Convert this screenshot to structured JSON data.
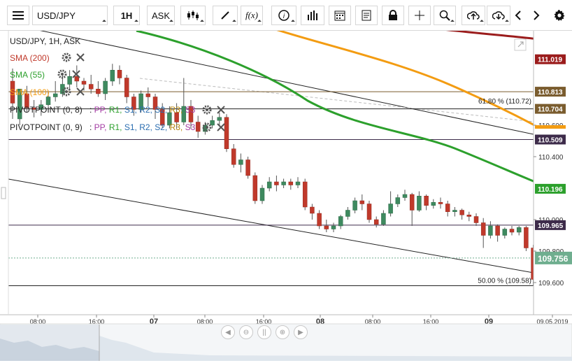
{
  "toolbar": {
    "symbol": "USD/JPY",
    "timeframe": "1H",
    "price_type": "ASK",
    "icons": [
      "menu-icon",
      "candles-icon",
      "draw-icon",
      "fx-icon",
      "info-icon",
      "volume-icon",
      "calendar-icon",
      "note-icon",
      "lock-icon",
      "crosshair-icon",
      "zoom-icon",
      "upload-icon",
      "download-icon",
      "prev-icon",
      "next-icon",
      "gear-icon"
    ],
    "fx_label": "f(x)"
  },
  "chart": {
    "header": "USD/JPY, 1H, ASK",
    "legend": [
      {
        "name": "SMA (200)",
        "color": "#c0392b"
      },
      {
        "name": "SMA (55)",
        "color": "#2ca02c"
      },
      {
        "name": "SMA (100)",
        "color": "#f39c12"
      }
    ],
    "pivots": [
      {
        "label": "PIVOTPOINT (0, 8)",
        "items": [
          "PP",
          "R1",
          "S1",
          "R2",
          "S2",
          "R3",
          "S3"
        ]
      },
      {
        "label": "PIVOTPOINT (0, 9)",
        "items": [
          "PP",
          "R1",
          "S1",
          "R2",
          "S2",
          "R3",
          "S3"
        ]
      }
    ],
    "pivot_colors": [
      "#a33ca3",
      "#2ca02c",
      "#2a6db0",
      "#2a6db0",
      "#2a6db0",
      "#b8860b",
      "#a33ca3"
    ],
    "price_tags": [
      {
        "value": "111.019",
        "price": 111.019,
        "bg": "#9b1c1c"
      },
      {
        "value": "110.813",
        "price": 110.813,
        "bg": "#7a5c2e"
      },
      {
        "value": "110.704",
        "price": 110.704,
        "bg": "#7a5c2e"
      },
      {
        "value": "110.509",
        "price": 110.509,
        "bg": "#3d2b4a"
      },
      {
        "value": "110.196",
        "price": 110.196,
        "bg": "#2ca02c"
      },
      {
        "value": "109.965",
        "price": 109.965,
        "bg": "#3d2b4a"
      },
      {
        "value": "109.756",
        "price": 109.756,
        "bg": "#6fae8f"
      }
    ],
    "axis_ticks": [
      "110.600",
      "110.400",
      "110.000",
      "109.800",
      "109.600"
    ],
    "axis_tick_values": [
      110.6,
      110.4,
      110.0,
      109.8,
      109.6
    ],
    "fib_labels": [
      {
        "text": "61.80 % (110.72)",
        "price": 110.72
      },
      {
        "text": "50.00 % (109.58)",
        "price": 109.58
      }
    ],
    "time_labels": [
      {
        "text": "08:00",
        "bold": false
      },
      {
        "text": "16:00",
        "bold": false
      },
      {
        "text": "07",
        "bold": true
      },
      {
        "text": "08:00",
        "bold": false
      },
      {
        "text": "16:00",
        "bold": false
      },
      {
        "text": "08",
        "bold": true
      },
      {
        "text": "08:00",
        "bold": false
      },
      {
        "text": "16:00",
        "bold": false
      },
      {
        "text": "09",
        "bold": true
      },
      {
        "text": "09.05.2019",
        "bold": false
      }
    ],
    "time_positions": [
      54,
      138,
      220,
      293,
      377,
      458,
      533,
      616,
      699,
      790
    ],
    "candles": [
      [
        110.88,
        110.96,
        110.74,
        110.64
      ],
      [
        110.64,
        110.8,
        110.83,
        110.6
      ],
      [
        110.8,
        110.85,
        110.71,
        110.68
      ],
      [
        110.71,
        110.76,
        110.7,
        110.65
      ],
      [
        110.7,
        110.76,
        110.73,
        110.66
      ],
      [
        110.73,
        110.82,
        110.78,
        110.72
      ],
      [
        110.78,
        110.88,
        110.8,
        110.75
      ],
      [
        110.8,
        110.92,
        110.86,
        110.78
      ],
      [
        110.86,
        110.95,
        110.91,
        110.82
      ],
      [
        110.91,
        110.98,
        110.88,
        110.84
      ],
      [
        110.88,
        110.9,
        110.86,
        110.82
      ],
      [
        110.86,
        110.92,
        110.83,
        110.8
      ],
      [
        110.83,
        110.88,
        110.8,
        110.78
      ],
      [
        110.8,
        110.9,
        110.88,
        110.76
      ],
      [
        110.88,
        110.99,
        110.95,
        110.85
      ],
      [
        110.95,
        110.98,
        110.9,
        110.86
      ],
      [
        110.9,
        110.92,
        110.78,
        110.74
      ],
      [
        110.78,
        110.8,
        110.7,
        110.66
      ],
      [
        110.7,
        110.82,
        110.8,
        110.68
      ],
      [
        110.8,
        110.84,
        110.78,
        110.72
      ],
      [
        110.78,
        110.8,
        110.7,
        110.64
      ],
      [
        110.7,
        110.74,
        110.6,
        110.58
      ],
      [
        110.6,
        110.72,
        110.68,
        110.58
      ],
      [
        110.68,
        110.74,
        110.62,
        110.58
      ],
      [
        110.62,
        110.9,
        110.72,
        110.6
      ],
      [
        110.72,
        110.76,
        110.62,
        110.58
      ],
      [
        110.62,
        110.66,
        110.56,
        110.52
      ],
      [
        110.56,
        110.62,
        110.6,
        110.54
      ],
      [
        110.6,
        110.66,
        110.63,
        110.58
      ],
      [
        110.63,
        110.68,
        110.65,
        110.6
      ],
      [
        110.65,
        110.67,
        110.45,
        110.43
      ],
      [
        110.45,
        110.48,
        110.35,
        110.33
      ],
      [
        110.35,
        110.42,
        110.38,
        110.3
      ],
      [
        110.38,
        110.4,
        110.28,
        110.26
      ],
      [
        110.28,
        110.3,
        110.12,
        110.1
      ],
      [
        110.12,
        110.22,
        110.2,
        110.1
      ],
      [
        110.2,
        110.27,
        110.24,
        110.18
      ],
      [
        110.24,
        110.28,
        110.22,
        110.18
      ],
      [
        110.22,
        110.26,
        110.24,
        110.2
      ],
      [
        110.24,
        110.26,
        110.22,
        110.19
      ],
      [
        110.22,
        110.27,
        110.24,
        110.2
      ],
      [
        110.24,
        110.26,
        110.08,
        110.06
      ],
      [
        110.08,
        110.1,
        110.04,
        110.0
      ],
      [
        110.04,
        110.06,
        109.96,
        109.94
      ],
      [
        109.96,
        110.0,
        109.94,
        109.92
      ],
      [
        109.94,
        109.98,
        109.96,
        109.92
      ],
      [
        109.96,
        110.03,
        110.02,
        109.94
      ],
      [
        110.02,
        110.08,
        110.06,
        110.0
      ],
      [
        110.06,
        110.14,
        110.12,
        110.04
      ],
      [
        110.12,
        110.16,
        110.1,
        110.06
      ],
      [
        110.1,
        110.12,
        110.0,
        109.98
      ],
      [
        110.0,
        110.02,
        109.97,
        109.95
      ],
      [
        109.97,
        110.06,
        110.04,
        109.96
      ],
      [
        110.04,
        110.18,
        110.1,
        110.02
      ],
      [
        110.1,
        110.16,
        110.14,
        110.08
      ],
      [
        110.14,
        110.19,
        110.16,
        110.12
      ],
      [
        110.16,
        110.17,
        110.06,
        109.96
      ],
      [
        110.06,
        110.18,
        110.15,
        110.05
      ],
      [
        110.15,
        110.16,
        110.09,
        110.06
      ],
      [
        110.09,
        110.13,
        110.11,
        110.07
      ],
      [
        110.11,
        110.14,
        110.1,
        110.07
      ],
      [
        110.1,
        110.12,
        110.05,
        110.02
      ],
      [
        110.05,
        110.08,
        110.06,
        110.02
      ],
      [
        110.06,
        110.07,
        110.03,
        110.0
      ],
      [
        110.03,
        110.05,
        110.02,
        109.99
      ],
      [
        110.02,
        110.04,
        109.98,
        109.96
      ],
      [
        109.98,
        110.01,
        109.9,
        109.82
      ],
      [
        109.9,
        109.99,
        109.96,
        109.88
      ],
      [
        109.96,
        109.97,
        109.9,
        109.86
      ],
      [
        109.9,
        109.95,
        109.94,
        109.88
      ],
      [
        109.94,
        109.96,
        109.92,
        109.9
      ],
      [
        109.92,
        109.96,
        109.95,
        109.9
      ],
      [
        109.95,
        109.96,
        109.82,
        109.8
      ],
      [
        109.82,
        109.84,
        109.62,
        109.58
      ]
    ]
  }
}
